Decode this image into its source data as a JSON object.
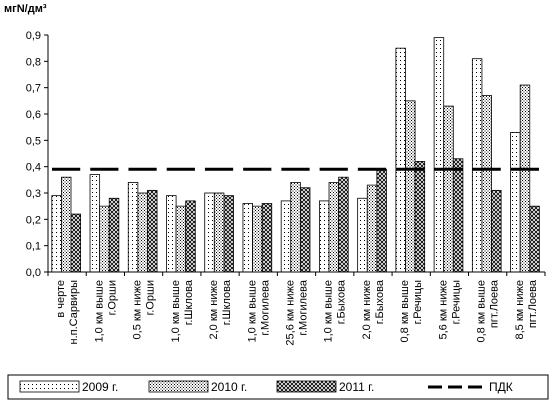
{
  "chart_data": {
    "type": "bar",
    "ylabel": "мгN/дм³",
    "ylim": [
      0,
      0.9
    ],
    "ytick_step": 0.1,
    "ytick_labels": [
      "0,0",
      "0,1",
      "0,2",
      "0,3",
      "0,4",
      "0,5",
      "0,6",
      "0,7",
      "0,8",
      "0,9"
    ],
    "grid": false,
    "legend_position": "bottom",
    "categories": [
      [
        "в черте",
        "н.п.Сарвиры"
      ],
      [
        "1,0 км выше",
        "г.Орши"
      ],
      [
        "0,5 км ниже",
        "г.Орши"
      ],
      [
        "1,0 км выше",
        "г.Шклова"
      ],
      [
        "2,0 км ниже",
        "г.Шклова"
      ],
      [
        "1,0 км выше",
        "г.Могилева"
      ],
      [
        "25,6 км ниже",
        "г.Могилева"
      ],
      [
        "1,0 км выше",
        "г.Быхова"
      ],
      [
        "2,0 км ниже",
        "г.Быхова"
      ],
      [
        "0,8 км выше",
        "г.Речицы"
      ],
      [
        "5,6 км ниже",
        "г.Речицы"
      ],
      [
        "0,8 км выше",
        "пгт.Лоева"
      ],
      [
        "8,5 км ниже",
        "пгт.Лоева"
      ]
    ],
    "series": [
      {
        "name": "2009 г.",
        "values": [
          0.29,
          0.37,
          0.34,
          0.29,
          0.3,
          0.26,
          0.27,
          0.27,
          0.28,
          0.85,
          0.89,
          0.81,
          0.53
        ]
      },
      {
        "name": "2010 г.",
        "values": [
          0.36,
          0.25,
          0.3,
          0.25,
          0.3,
          0.25,
          0.34,
          0.34,
          0.33,
          0.65,
          0.63,
          0.67,
          0.71
        ]
      },
      {
        "name": "2011 г.",
        "values": [
          0.22,
          0.28,
          0.31,
          0.27,
          0.29,
          0.26,
          0.32,
          0.36,
          0.39,
          0.42,
          0.43,
          0.31,
          0.25
        ]
      }
    ],
    "reference_line": {
      "name": "ПДК",
      "value": 0.39
    },
    "colors": {
      "bar_stroke": "#000000",
      "pattern_ink": "#000000",
      "background": "#ffffff",
      "reference_line": "#000000"
    }
  }
}
